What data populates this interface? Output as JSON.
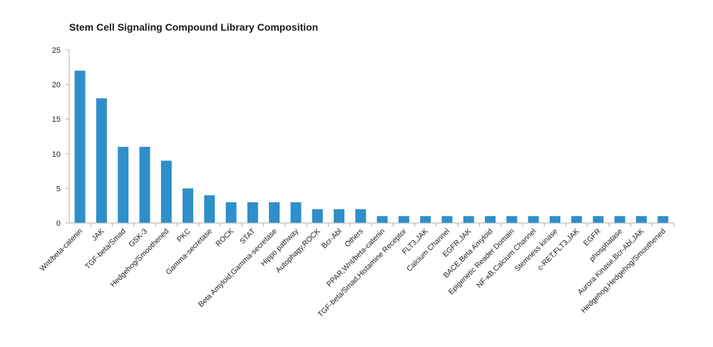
{
  "chart_data": {
    "type": "bar",
    "title": "Stem Cell Signaling Compound Library Composition",
    "xlabel": "",
    "ylabel": "",
    "ylim": [
      0,
      25
    ],
    "yticks": [
      0,
      5,
      10,
      15,
      20,
      25
    ],
    "grid": false,
    "legend": "none",
    "bar_color": "#2e8fcb",
    "axis_color": "#b0b0b0",
    "categories": [
      "Wnt/beta-catenin",
      "JAK",
      "TGF-beta/Smad",
      "GSK-3",
      "Hedgehog/Smoothened",
      "PKC",
      "Gamma-secretase",
      "ROCK",
      "STAT",
      "Beta Amyloid,Gamma-secretase",
      "Hippo pathway",
      "Autophagy,ROCK",
      "Bcr-Abl",
      "Others",
      "PPAR,Wnt/beta-catenin",
      "TGF-beta/Smad,Histamine Receptor",
      "FLT3,JAK",
      "Calcium Channel",
      "EGFR,JAK",
      "BACE,Beta Amyloid",
      "Epigenetic Reader Domain",
      "NF-κB,Calcium Channel",
      "Stemness kinase",
      "c-RET,FLT3,JAK",
      "EGFR",
      "phosphatase",
      "Aurora Kinase,Bcr-Abl,JAK",
      "Hedgehog,Hedgehog/Smoothened"
    ],
    "values": [
      22,
      18,
      11,
      11,
      9,
      5,
      4,
      3,
      3,
      3,
      3,
      2,
      2,
      2,
      1,
      1,
      1,
      1,
      1,
      1,
      1,
      1,
      1,
      1,
      1,
      1,
      1,
      1
    ]
  }
}
